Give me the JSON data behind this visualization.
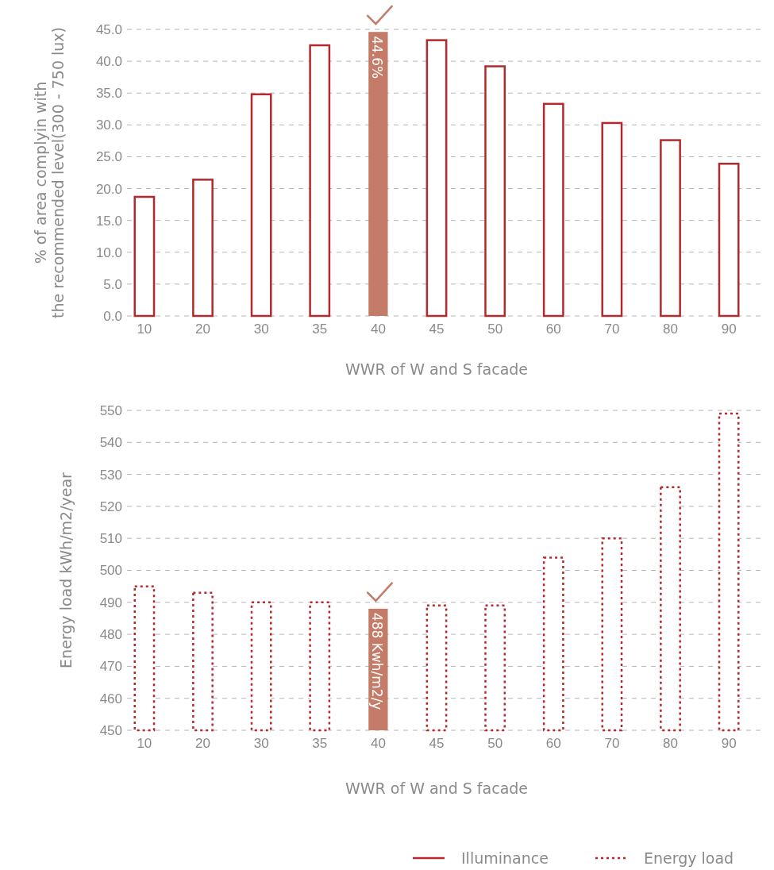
{
  "chart_data": [
    {
      "type": "bar",
      "xlabel": "WWR of W and S facade",
      "ylabel": "% of area complyin with\nthe recommended level(300 - 750 lux)",
      "categories": [
        "10",
        "20",
        "30",
        "35",
        "40",
        "45",
        "50",
        "60",
        "70",
        "80",
        "90"
      ],
      "series": [
        {
          "name": "Illuminance",
          "color": "#b22a2e",
          "colors": [
            "#b22a2e",
            "#b22a2e",
            "#b22a2e",
            "#b22a2e",
            "#c47c68",
            "#b22a2e",
            "#b22a2e",
            "#b22a2e",
            "#b22a2e",
            "#b22a2e",
            "#b22a2e"
          ],
          "values": [
            18.7,
            21.4,
            34.8,
            42.5,
            44.6,
            43.3,
            39.2,
            33.3,
            30.3,
            27.6,
            23.9
          ],
          "value_labels": [
            null,
            null,
            null,
            null,
            "44.6%",
            null,
            null,
            null,
            null,
            null,
            null
          ],
          "line_style": "solid"
        }
      ],
      "ylim": [
        0,
        45
      ],
      "yticks": [
        {
          "value": 0,
          "label": "0.0"
        },
        {
          "value": 5,
          "label": "5.0"
        },
        {
          "value": 10,
          "label": "10.0"
        },
        {
          "value": 15,
          "label": "15.0"
        },
        {
          "value": 20,
          "label": "20.0"
        },
        {
          "value": 25,
          "label": "25.0"
        },
        {
          "value": 30,
          "label": "30.0"
        },
        {
          "value": 35,
          "label": "35.0"
        },
        {
          "value": 40,
          "label": "40.0"
        },
        {
          "value": 45,
          "label": "45.0"
        }
      ],
      "grid": "y",
      "legend": "bottom right"
    },
    {
      "type": "bar",
      "xlabel": "WWR of W and S facade",
      "ylabel": "Energy load kWh/m2/year",
      "categories": [
        "10",
        "20",
        "30",
        "35",
        "40",
        "45",
        "50",
        "60",
        "70",
        "80",
        "90"
      ],
      "series": [
        {
          "name": "Energy load",
          "color": "#b22a2e",
          "colors": [
            "#b22a2e",
            "#b22a2e",
            "#b22a2e",
            "#b22a2e",
            "#c47c68",
            "#b22a2e",
            "#b22a2e",
            "#b22a2e",
            "#b22a2e",
            "#b22a2e",
            "#b22a2e"
          ],
          "values": [
            495,
            493,
            490,
            490,
            488,
            489,
            489,
            504,
            510,
            526,
            549
          ],
          "value_labels": [
            null,
            null,
            null,
            null,
            "488 Kwh/m2/y",
            null,
            null,
            null,
            null,
            null,
            null
          ],
          "line_style": "dotted"
        }
      ],
      "ylim": [
        450,
        550
      ],
      "yticks": [
        450,
        460,
        470,
        480,
        490,
        500,
        510,
        520,
        530,
        540,
        550
      ],
      "grid": "y",
      "legend": "bottom right"
    }
  ]
}
